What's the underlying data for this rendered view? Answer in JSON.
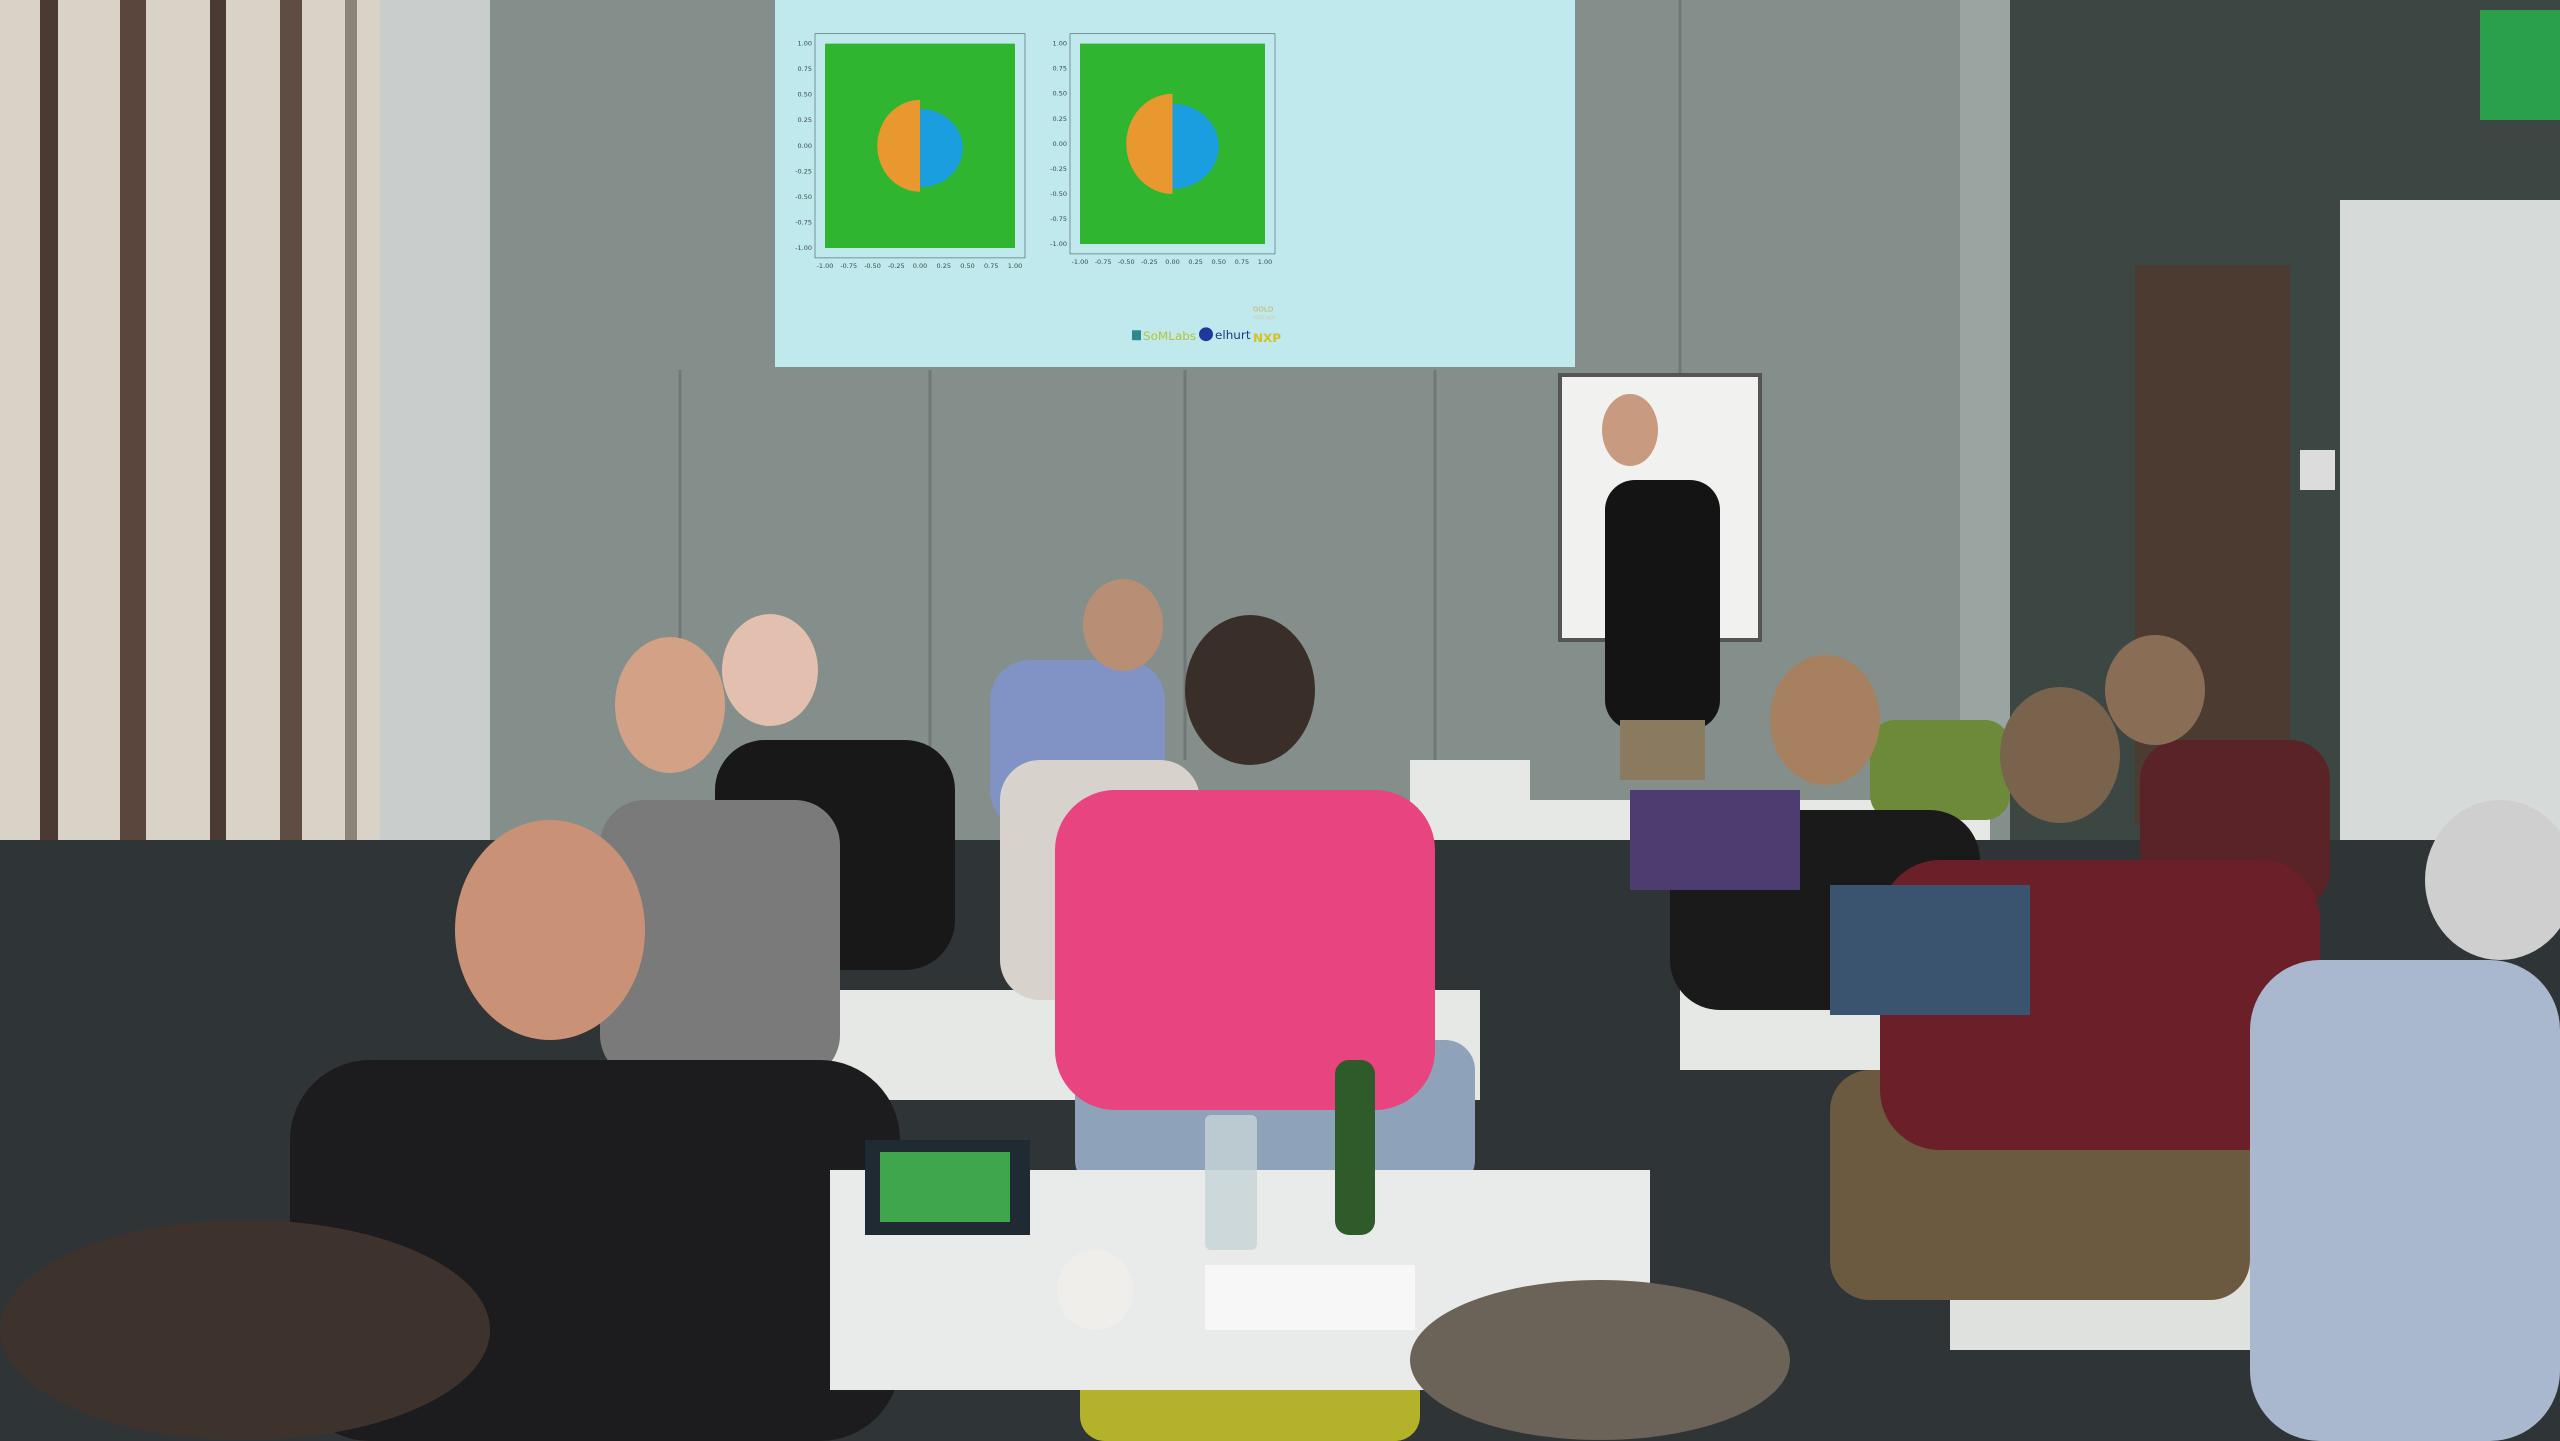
{
  "slide": {
    "background": "#bfe9ed",
    "plots": [
      {
        "type": "scatter",
        "xlim": [
          -1.0,
          1.0
        ],
        "ylim": [
          -1.0,
          1.0
        ],
        "xticks": [
          "-1.00",
          "-0.75",
          "-0.50",
          "-0.25",
          "0.00",
          "0.25",
          "0.50",
          "0.75",
          "1.00"
        ],
        "yticks": [
          "1.00",
          "0.75",
          "0.50",
          "0.25",
          "0.00",
          "-0.25",
          "-0.50",
          "-0.75",
          "-1.00"
        ],
        "colors": {
          "background_class": "#2fb52f",
          "left_class": "#e8982f",
          "right_class": "#1a9ee0"
        }
      },
      {
        "type": "scatter",
        "xlim": [
          -1.0,
          1.0
        ],
        "ylim": [
          -1.0,
          1.0
        ],
        "xticks": [
          "-1.00",
          "-0.75",
          "-0.50",
          "-0.25",
          "0.00",
          "0.25",
          "0.50",
          "0.75",
          "1.00"
        ],
        "yticks": [
          "1.00",
          "0.75",
          "0.50",
          "0.25",
          "0.00",
          "-0.25",
          "-0.50",
          "-0.75",
          "-1.00"
        ],
        "colors": {
          "background_class": "#2fb52f",
          "left_class": "#e8982f",
          "right_class": "#1a9ee0"
        }
      }
    ],
    "logos": {
      "somlabs": "SoMLabs",
      "elhurt": "elhurt",
      "nxp": "NXP",
      "badge_top": "GOLD",
      "badge_bottom": "PARTNER"
    }
  }
}
